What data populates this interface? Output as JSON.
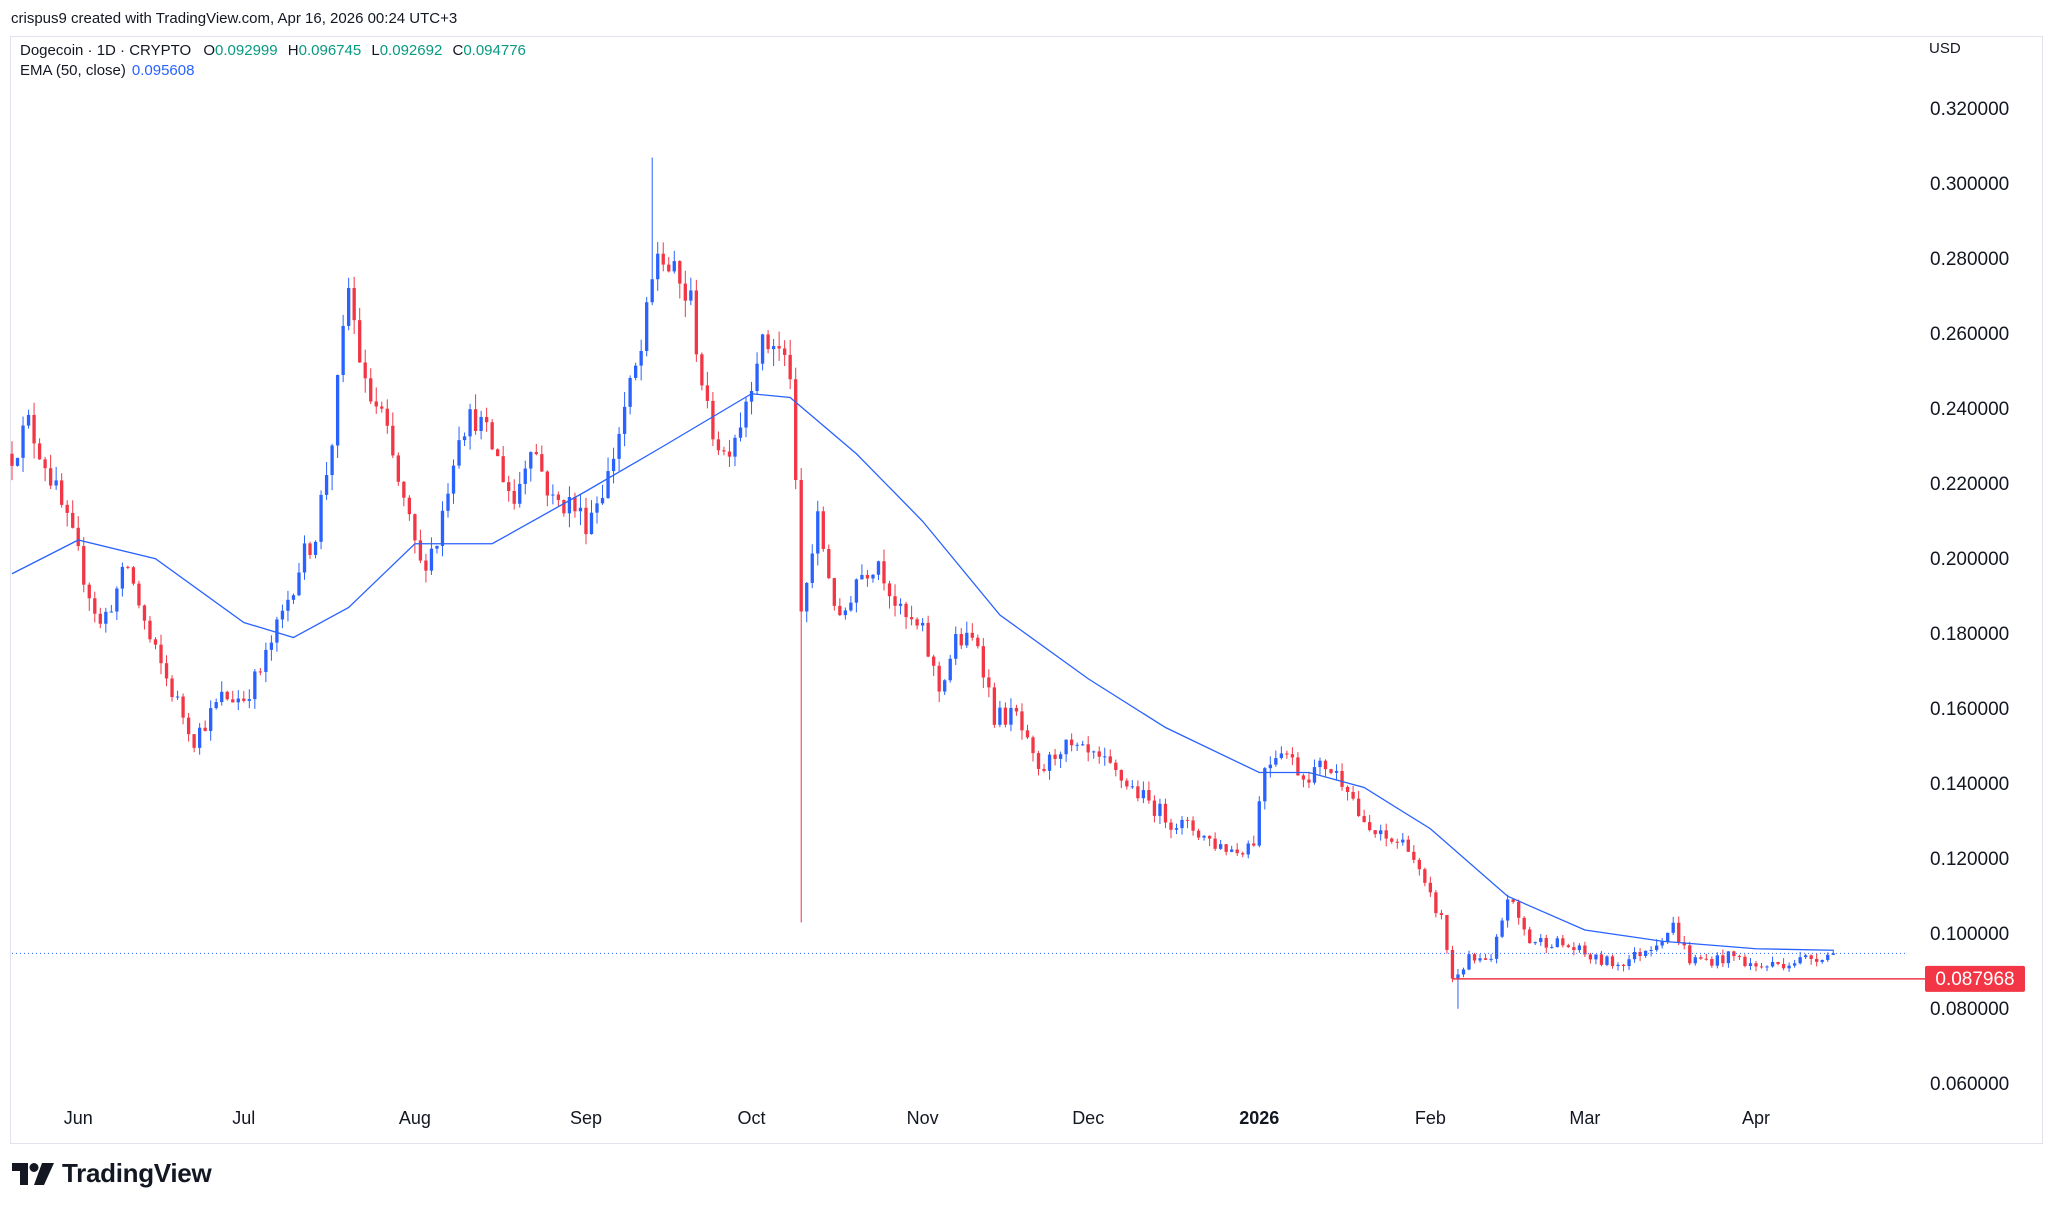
{
  "attribution": "crispus9 created with TradingView.com, Apr 16, 2026 00:24 UTC+3",
  "legend": {
    "symbol": "Dogecoin · 1D · CRYPTO",
    "o_label": "O",
    "o_value": "0.092999",
    "h_label": "H",
    "h_value": "0.096745",
    "l_label": "L",
    "l_value": "0.092692",
    "c_label": "C",
    "c_value": "0.094776",
    "ema_label": "EMA (50, close)",
    "ema_value": "0.095608"
  },
  "currency": "USD",
  "brand": "TradingView",
  "colors": {
    "up": "#2962ff",
    "down": "#f23645",
    "ema": "#2962ff",
    "support": "#f23645"
  },
  "chart_data": {
    "type": "candlestick",
    "y_ticks": [
      "0.320000",
      "0.300000",
      "0.280000",
      "0.260000",
      "0.240000",
      "0.220000",
      "0.200000",
      "0.180000",
      "0.160000",
      "0.140000",
      "0.120000",
      "0.100000",
      "0.080000",
      "0.060000"
    ],
    "y_tick_values": [
      0.32,
      0.3,
      0.28,
      0.26,
      0.24,
      0.22,
      0.2,
      0.18,
      0.16,
      0.14,
      0.12,
      0.1,
      0.08,
      0.06
    ],
    "ylim": [
      0.053,
      0.333
    ],
    "x_labels": [
      "Jun",
      "Jul",
      "Aug",
      "Sep",
      "Oct",
      "Nov",
      "Dec",
      "2026",
      "Feb",
      "Mar",
      "Apr"
    ],
    "x_label_dates": [
      "2025-06-01",
      "2025-07-01",
      "2025-08-01",
      "2025-09-01",
      "2025-10-01",
      "2025-11-01",
      "2025-12-01",
      "2026-01-01",
      "2026-02-01",
      "2026-03-01",
      "2026-04-01"
    ],
    "xlim": [
      "2025-05-20",
      "2026-04-28"
    ],
    "current_price": 0.094776,
    "support_level": {
      "value": 0.087968,
      "label": "0.087968",
      "from": "2026-02-05",
      "to": "2026-04-28"
    },
    "series": [
      {
        "name": "Dogecoin",
        "anchors": [
          [
            "2025-05-20",
            0.228
          ],
          [
            "2025-05-23",
            0.236
          ],
          [
            "2025-05-26",
            0.226
          ],
          [
            "2025-05-31",
            0.205
          ],
          [
            "2025-06-05",
            0.182
          ],
          [
            "2025-06-10",
            0.198
          ],
          [
            "2025-06-14",
            0.178
          ],
          [
            "2025-06-17",
            0.168
          ],
          [
            "2025-06-22",
            0.152
          ],
          [
            "2025-06-27",
            0.163
          ],
          [
            "2025-07-01",
            0.163
          ],
          [
            "2025-07-04",
            0.17
          ],
          [
            "2025-07-08",
            0.185
          ],
          [
            "2025-07-11",
            0.198
          ],
          [
            "2025-07-14",
            0.207
          ],
          [
            "2025-07-17",
            0.232
          ],
          [
            "2025-07-20",
            0.272
          ],
          [
            "2025-07-23",
            0.245
          ],
          [
            "2025-07-26",
            0.238
          ],
          [
            "2025-07-29",
            0.22
          ],
          [
            "2025-08-02",
            0.198
          ],
          [
            "2025-08-05",
            0.205
          ],
          [
            "2025-08-09",
            0.235
          ],
          [
            "2025-08-12",
            0.238
          ],
          [
            "2025-08-15",
            0.23
          ],
          [
            "2025-08-19",
            0.215
          ],
          [
            "2025-08-22",
            0.232
          ],
          [
            "2025-08-26",
            0.215
          ],
          [
            "2025-08-29",
            0.215
          ],
          [
            "2025-09-01",
            0.21
          ],
          [
            "2025-09-05",
            0.222
          ],
          [
            "2025-09-08",
            0.24
          ],
          [
            "2025-09-11",
            0.255
          ],
          [
            "2025-09-14",
            0.282
          ],
          [
            "2025-09-17",
            0.275
          ],
          [
            "2025-09-20",
            0.268
          ],
          [
            "2025-09-23",
            0.238
          ],
          [
            "2025-09-26",
            0.228
          ],
          [
            "2025-09-29",
            0.237
          ],
          [
            "2025-10-02",
            0.255
          ],
          [
            "2025-10-05",
            0.258
          ],
          [
            "2025-10-08",
            0.25
          ],
          [
            "2025-10-10",
            0.185
          ],
          [
            "2025-10-13",
            0.21
          ],
          [
            "2025-10-17",
            0.182
          ],
          [
            "2025-10-20",
            0.195
          ],
          [
            "2025-10-24",
            0.2
          ],
          [
            "2025-10-28",
            0.185
          ],
          [
            "2025-11-01",
            0.18
          ],
          [
            "2025-11-04",
            0.165
          ],
          [
            "2025-11-07",
            0.178
          ],
          [
            "2025-11-11",
            0.178
          ],
          [
            "2025-11-14",
            0.158
          ],
          [
            "2025-11-18",
            0.158
          ],
          [
            "2025-11-22",
            0.142
          ],
          [
            "2025-11-26",
            0.15
          ],
          [
            "2025-11-30",
            0.148
          ],
          [
            "2025-12-04",
            0.145
          ],
          [
            "2025-12-08",
            0.14
          ],
          [
            "2025-12-12",
            0.135
          ],
          [
            "2025-12-16",
            0.13
          ],
          [
            "2025-12-20",
            0.128
          ],
          [
            "2025-12-24",
            0.124
          ],
          [
            "2025-12-28",
            0.122
          ],
          [
            "2025-12-31",
            0.125
          ],
          [
            "2026-01-02",
            0.145
          ],
          [
            "2026-01-05",
            0.15
          ],
          [
            "2026-01-09",
            0.142
          ],
          [
            "2026-01-13",
            0.145
          ],
          [
            "2026-01-17",
            0.14
          ],
          [
            "2026-01-20",
            0.128
          ],
          [
            "2026-01-24",
            0.125
          ],
          [
            "2026-01-28",
            0.124
          ],
          [
            "2026-01-31",
            0.112
          ],
          [
            "2026-02-03",
            0.104
          ],
          [
            "2026-02-05",
            0.088
          ],
          [
            "2026-02-08",
            0.093
          ],
          [
            "2026-02-12",
            0.092
          ],
          [
            "2026-02-15",
            0.11
          ],
          [
            "2026-02-19",
            0.098
          ],
          [
            "2026-02-23",
            0.098
          ],
          [
            "2026-02-27",
            0.096
          ],
          [
            "2026-03-03",
            0.093
          ],
          [
            "2026-03-07",
            0.092
          ],
          [
            "2026-03-10",
            0.094
          ],
          [
            "2026-03-14",
            0.098
          ],
          [
            "2026-03-17",
            0.102
          ],
          [
            "2026-03-20",
            0.093
          ],
          [
            "2026-03-24",
            0.093
          ],
          [
            "2026-03-28",
            0.094
          ],
          [
            "2026-04-01",
            0.091
          ],
          [
            "2026-04-05",
            0.092
          ],
          [
            "2026-04-09",
            0.093
          ],
          [
            "2026-04-12",
            0.094
          ],
          [
            "2026-04-15",
            0.094776
          ]
        ]
      },
      {
        "name": "EMA (50, close)",
        "anchors": [
          [
            "2025-05-20",
            0.196
          ],
          [
            "2025-06-01",
            0.205
          ],
          [
            "2025-06-15",
            0.2
          ],
          [
            "2025-07-01",
            0.183
          ],
          [
            "2025-07-10",
            0.179
          ],
          [
            "2025-07-20",
            0.187
          ],
          [
            "2025-08-01",
            0.204
          ],
          [
            "2025-08-15",
            0.204
          ],
          [
            "2025-09-01",
            0.218
          ],
          [
            "2025-09-15",
            0.23
          ],
          [
            "2025-10-01",
            0.244
          ],
          [
            "2025-10-08",
            0.243
          ],
          [
            "2025-10-20",
            0.228
          ],
          [
            "2025-11-01",
            0.21
          ],
          [
            "2025-11-15",
            0.185
          ],
          [
            "2025-12-01",
            0.168
          ],
          [
            "2025-12-15",
            0.155
          ],
          [
            "2026-01-01",
            0.143
          ],
          [
            "2026-01-10",
            0.143
          ],
          [
            "2026-01-20",
            0.139
          ],
          [
            "2026-02-01",
            0.128
          ],
          [
            "2026-02-15",
            0.11
          ],
          [
            "2026-03-01",
            0.101
          ],
          [
            "2026-03-15",
            0.098
          ],
          [
            "2026-04-01",
            0.096
          ],
          [
            "2026-04-15",
            0.095608
          ]
        ]
      }
    ]
  }
}
